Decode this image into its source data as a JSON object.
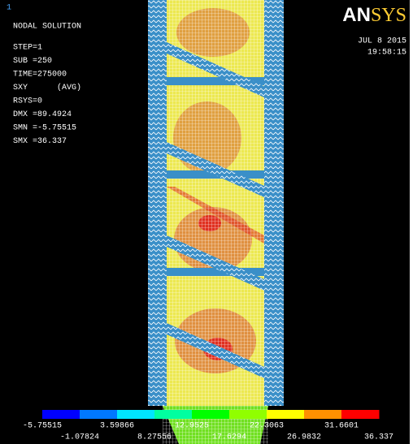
{
  "window_number": "1",
  "header": {
    "title": "NODAL SOLUTION",
    "lines": [
      "STEP=1",
      "SUB =250",
      "TIME=275000",
      "SXY      (AVG)",
      "RSYS=0",
      "DMX =89.4924",
      "SMN =-5.75515",
      "SMX =36.337"
    ]
  },
  "logo": {
    "bold": "AN",
    "rest": "SYS"
  },
  "date": "JUL  8 2015",
  "time": "19:58:15",
  "legend": {
    "labels": [
      -5.75515,
      -1.07824,
      3.59866,
      8.27556,
      12.9525,
      17.6294,
      22.3063,
      26.9832,
      31.6601,
      36.337
    ],
    "colors": [
      "#0000ff",
      "#0078ff",
      "#00e6ff",
      "#00ffa0",
      "#00ff00",
      "#90ff00",
      "#ffff00",
      "#ff9000",
      "#ff0000"
    ]
  }
}
